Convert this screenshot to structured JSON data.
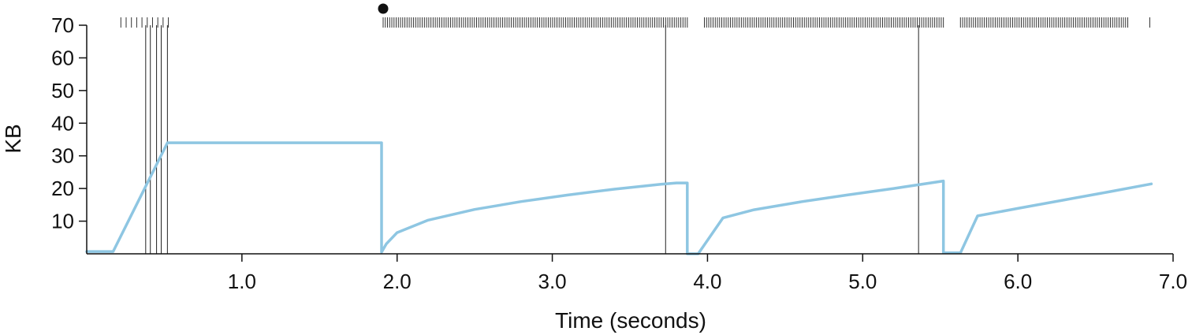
{
  "chart_data": {
    "type": "line",
    "title": "",
    "xlabel": "Time (seconds)",
    "ylabel": "KB",
    "xlim": [
      0,
      7.0
    ],
    "ylim": [
      0,
      70
    ],
    "x_ticks": [
      1.0,
      2.0,
      3.0,
      4.0,
      5.0,
      6.0,
      7.0
    ],
    "x_tick_labels": [
      "1.0",
      "2.0",
      "3.0",
      "4.0",
      "5.0",
      "6.0",
      "7.0"
    ],
    "y_ticks": [
      10,
      20,
      30,
      40,
      50,
      60,
      70
    ],
    "y_tick_labels": [
      "10",
      "20",
      "30",
      "40",
      "50",
      "60",
      "70"
    ],
    "grid": false,
    "line_color": "#8ec6e2",
    "series": [
      {
        "x": [
          0.0,
          0.17,
          0.52,
          1.9,
          1.9,
          1.93,
          2.0,
          2.2,
          2.5,
          2.8,
          3.1,
          3.4,
          3.7,
          3.8,
          3.87,
          3.87,
          3.94,
          4.1,
          4.3,
          4.6,
          4.9,
          5.2,
          5.52,
          5.52,
          5.63,
          5.74,
          6.0,
          6.3,
          6.6,
          6.86
        ],
        "y": [
          0.7,
          0.7,
          34,
          34,
          0.5,
          3.0,
          6.5,
          10.3,
          13.6,
          16.0,
          18.0,
          19.8,
          21.3,
          21.7,
          21.7,
          0.0,
          0.0,
          11.0,
          13.5,
          15.9,
          18.0,
          20.0,
          22.3,
          0.3,
          0.3,
          11.6,
          13.9,
          16.5,
          19.1,
          21.4
        ]
      }
    ],
    "vertical_lines": [
      0.38,
      0.41,
      0.45,
      0.48,
      0.52,
      3.73,
      5.36
    ],
    "event_tick_segments": [
      {
        "start": 0.22,
        "end": 0.53,
        "step": 0.034
      },
      {
        "start": 1.91,
        "end": 3.87,
        "step": 0.014
      },
      {
        "start": 3.98,
        "end": 5.52,
        "step": 0.014
      },
      {
        "start": 5.63,
        "end": 6.72,
        "step": 0.014
      }
    ],
    "event_ticks_extra": [
      6.85
    ],
    "marker_dot": {
      "x": 1.91
    }
  }
}
